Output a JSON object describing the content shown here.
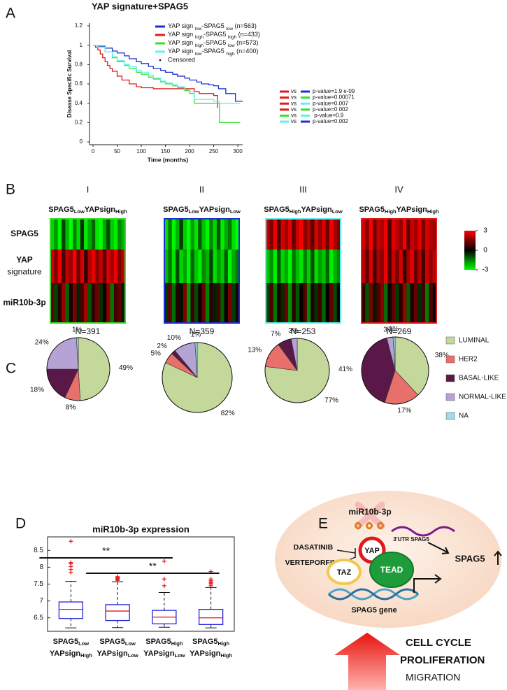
{
  "panel_labels": [
    "A",
    "B",
    "C",
    "D",
    "E"
  ],
  "chart_data": [
    {
      "type": "survival",
      "title": "YAP signature+SPAG5",
      "y_label": "Disease Specific Survival",
      "x_label": "Time (months)",
      "xlim": [
        0,
        310
      ],
      "xticks": [
        0,
        50,
        100,
        150,
        200,
        250,
        300
      ],
      "ylim": [
        0,
        1.2
      ],
      "yticks": [
        0,
        0.2,
        0.4,
        0.6,
        0.8,
        1,
        1.2
      ],
      "series": [
        {
          "name": [
            "YAP sign ",
            "low",
            "-SPAG5 ",
            "low",
            " (n=563)"
          ],
          "color": "#1a2fd1",
          "x": [
            0,
            10,
            25,
            40,
            50,
            65,
            75,
            90,
            100,
            115,
            125,
            140,
            150,
            165,
            175,
            190,
            200,
            215,
            225,
            240,
            250,
            260,
            275,
            295,
            310
          ],
          "values": [
            1,
            0.99,
            0.97,
            0.94,
            0.92,
            0.89,
            0.86,
            0.83,
            0.81,
            0.78,
            0.76,
            0.74,
            0.72,
            0.7,
            0.68,
            0.66,
            0.64,
            0.62,
            0.6,
            0.59,
            0.58,
            0.55,
            0.5,
            0.42,
            0.42
          ]
        },
        {
          "name": [
            "YAP sign ",
            "high",
            "-SPAG5 ",
            "high",
            " (n=433)"
          ],
          "color": "#e0191c",
          "x": [
            0,
            5,
            10,
            15,
            20,
            25,
            30,
            35,
            40,
            50,
            60,
            75,
            90,
            100,
            125,
            150,
            175,
            200,
            210,
            220,
            250,
            258
          ],
          "values": [
            1,
            0.98,
            0.95,
            0.91,
            0.87,
            0.83,
            0.79,
            0.76,
            0.73,
            0.68,
            0.64,
            0.6,
            0.57,
            0.56,
            0.55,
            0.55,
            0.55,
            0.55,
            0.52,
            0.5,
            0.48,
            0.35
          ]
        },
        {
          "name": [
            "YAP sign ",
            "high",
            "-SPAG5 ",
            "low",
            " (n=573)"
          ],
          "color": "#3ddc2e",
          "x": [
            0,
            10,
            25,
            40,
            50,
            65,
            75,
            90,
            100,
            115,
            125,
            140,
            150,
            165,
            175,
            190,
            200,
            210,
            250,
            262,
            305
          ],
          "values": [
            1,
            0.98,
            0.93,
            0.87,
            0.83,
            0.79,
            0.76,
            0.72,
            0.7,
            0.67,
            0.65,
            0.62,
            0.6,
            0.58,
            0.56,
            0.53,
            0.5,
            0.4,
            0.4,
            0.2,
            0.2
          ]
        },
        {
          "name": [
            "YAP sign ",
            "low",
            "-SPAG5 ",
            "high",
            " (n=400)"
          ],
          "color": "#5ff2ef",
          "x": [
            0,
            10,
            25,
            40,
            50,
            65,
            75,
            90,
            100,
            115,
            125,
            140,
            150,
            165,
            175,
            190,
            200,
            210,
            250,
            262,
            305
          ],
          "values": [
            1,
            0.98,
            0.93,
            0.88,
            0.84,
            0.8,
            0.78,
            0.74,
            0.72,
            0.69,
            0.66,
            0.63,
            0.61,
            0.59,
            0.57,
            0.54,
            0.52,
            0.44,
            0.42,
            0.4,
            0.4
          ]
        }
      ],
      "censored_label": "Censored",
      "comparisons": [
        {
          "colors": [
            "#e0191c",
            "#1a2fd1"
          ],
          "vs": "vs",
          "p": "p-value=1.9 e-09"
        },
        {
          "colors": [
            "#e0191c",
            "#3ddc2e"
          ],
          "vs": "vs",
          "p": "p-value=0.00071"
        },
        {
          "colors": [
            "#e0191c",
            "#5ff2ef"
          ],
          "vs": "vs",
          "p": "p-value=0.007"
        },
        {
          "colors": [
            "#e0191c",
            "#3ddc2e"
          ],
          "vs": "vs",
          "p": "p-value=0.002"
        },
        {
          "colors": [
            "#3ddc2e",
            "#5ff2ef"
          ],
          "vs": "vs",
          "p": " p-value=0.9"
        },
        {
          "colors": [
            "#5ff2ef",
            "#1a2fd1"
          ],
          "vs": "vs",
          "p": "p-value=0.002"
        }
      ]
    },
    {
      "type": "pie",
      "categories": [
        "LUMINAL",
        "HER2",
        "BASAL-LIKE",
        "NORMAL-LIKE",
        "NA"
      ],
      "colors": [
        "#c4d89c",
        "#e8706a",
        "#5a1848",
        "#b5a3d6",
        "#9fdbe9"
      ],
      "series": [
        {
          "values": [
            49,
            8,
            18,
            24,
            1
          ],
          "value_labels": [
            "49%",
            "8%",
            "18%",
            "24%",
            "1%"
          ]
        },
        {
          "values": [
            82,
            5,
            2,
            10,
            1
          ],
          "value_labels": [
            "82%",
            "5%",
            "2%",
            "10%",
            "1%"
          ]
        },
        {
          "values": [
            77,
            13,
            7,
            3,
            null
          ],
          "value_labels": [
            "77%",
            "13%",
            "7%",
            "3%",
            null
          ]
        },
        {
          "values": [
            38,
            17,
            41,
            3,
            1
          ],
          "value_labels": [
            "38%",
            "17%",
            "41%",
            "3%",
            "1%"
          ]
        }
      ]
    },
    {
      "type": "box",
      "title": "miR10b-3p expression",
      "categories": [
        [
          [
            "SPAG5",
            "Low"
          ],
          [
            "YAPsign",
            "High"
          ]
        ],
        [
          [
            "SPAG5",
            "Low"
          ],
          [
            "YAPsign",
            "Low"
          ]
        ],
        [
          [
            "SPAG5",
            "High"
          ],
          [
            "YAPsign",
            "Low"
          ]
        ],
        [
          [
            "SPAG5",
            "High"
          ],
          [
            "YAPsign",
            "High"
          ]
        ]
      ],
      "ylim": [
        6.1,
        8.9
      ],
      "yticks": [
        6.5,
        7,
        7.5,
        8,
        8.5
      ],
      "box_color": "#2323d8",
      "median_color": "#e0191c",
      "outlier_color": "#e0191c",
      "boxes": [
        {
          "whisker_low": 6.2,
          "q1": 6.48,
          "median": 6.75,
          "q3": 6.97,
          "whisker_high": 7.58,
          "outliers": [
            7.85,
            7.93,
            8.02,
            8.1,
            8.14,
            8.77
          ]
        },
        {
          "whisker_low": 6.21,
          "q1": 6.42,
          "median": 6.7,
          "q3": 6.89,
          "whisker_high": 7.57,
          "outliers": [
            7.61,
            7.64,
            7.67,
            7.7,
            7.72
          ]
        },
        {
          "whisker_low": 6.22,
          "q1": 6.32,
          "median": 6.52,
          "q3": 6.72,
          "whisker_high": 7.25,
          "outliers": [
            7.45,
            7.65,
            8.18
          ]
        },
        {
          "whisker_low": 6.2,
          "q1": 6.3,
          "median": 6.5,
          "q3": 6.75,
          "whisker_high": 7.4,
          "outliers": [
            7.45,
            7.5,
            7.53,
            7.56,
            7.6,
            7.65,
            7.87
          ]
        }
      ],
      "brackets": [
        {
          "label": "**",
          "groups": [
            0,
            2
          ]
        },
        {
          "label": "**",
          "groups": [
            1,
            3
          ]
        }
      ]
    }
  ],
  "heatmap": {
    "row_labels": [
      [
        "SPAG5"
      ],
      [
        "YAP",
        "signature"
      ],
      [
        "miR10b-3p"
      ]
    ],
    "colorbar": {
      "lim": [
        -3,
        3
      ],
      "ticks": [
        3,
        0,
        -3
      ]
    },
    "groups": [
      {
        "numeral": "I",
        "title": [
          "SPAG5",
          "Low",
          "YAPsign",
          "High"
        ],
        "n_label": "N=391",
        "border": "#3ddc2e",
        "rows": [
          [
            -2.5,
            -1.8,
            -2.9,
            -0.8,
            -2.2,
            -3,
            -1.5,
            -2.6,
            -0.5,
            -2.8,
            -2,
            -1.2,
            -2.7,
            -3,
            -1.9,
            -0.9,
            -2.4,
            -2.8,
            -1.6,
            -2.1
          ],
          [
            2.4,
            1.5,
            2.8,
            0.9,
            2.2,
            1.8,
            2.9,
            1.2,
            2.5,
            0.6,
            2.1,
            2.7,
            1.6,
            2.3,
            1,
            2.6,
            1.9,
            2.8,
            1.4,
            2.2
          ],
          [
            1.2,
            -0.8,
            0.5,
            1.8,
            -1.2,
            0.3,
            1.5,
            -0.4,
            0.9,
            2,
            -1,
            0.6,
            1.3,
            -0.6,
            0.2,
            1.7,
            -1.4,
            0.8,
            1.1,
            -0.3
          ]
        ]
      },
      {
        "numeral": "II",
        "title": [
          "SPAG5",
          "Low",
          "YAPsign",
          "Low"
        ],
        "n_label": "N=359",
        "border": "#1a2fd1",
        "rows": [
          [
            -2.6,
            -1.5,
            -2.9,
            -2.1,
            -0.7,
            -2.4,
            -3,
            -1.8,
            -2.7,
            -1.1,
            -2.3,
            -2.9,
            -1.6,
            -2.5,
            -0.9,
            -2.8,
            -2,
            -1.4,
            -2.6,
            -3
          ],
          [
            -2.2,
            -1.4,
            -2.7,
            -0.9,
            -2.5,
            -1.9,
            -2.9,
            -1.2,
            -2.3,
            -2.8,
            -1.6,
            -2.1,
            -0.8,
            -2.6,
            -1.8,
            -2.4,
            -1.1,
            -2.9,
            -2,
            -1.5
          ],
          [
            -0.6,
            1.1,
            -1.3,
            0.4,
            -0.2,
            1.5,
            -1.8,
            0.7,
            -0.9,
            0.2,
            1.2,
            -1.5,
            0.5,
            -0.4,
            0.9,
            -1.1,
            0.1,
            1.4,
            -0.7,
            0.3
          ]
        ]
      },
      {
        "numeral": "III",
        "title": [
          "SPAG5",
          "High",
          "YAPsign",
          "Low"
        ],
        "n_label": "N=253",
        "border": "#5ff2ef",
        "rows": [
          [
            2.3,
            1.4,
            2.8,
            0.8,
            2.5,
            1.9,
            2.7,
            1.1,
            2.4,
            2.9,
            1.6,
            2.2,
            0.9,
            2.6,
            1.8,
            2.5,
            1.3,
            2.8,
            2,
            1.5
          ],
          [
            -2.3,
            -1.7,
            -2.8,
            -1,
            -2.5,
            -2,
            -2.9,
            -1.4,
            -2.2,
            -2.7,
            -1.5,
            -2.4,
            -0.9,
            -2.6,
            -1.9,
            -2.3,
            -1.2,
            -2.8,
            -2.1,
            -1.6
          ],
          [
            -0.8,
            0.9,
            -1.4,
            0.3,
            -0.5,
            1.3,
            -1.7,
            0.5,
            -1,
            0.1,
            1,
            -1.6,
            0.4,
            -0.6,
            0.7,
            -1.2,
            0,
            1.2,
            -0.9,
            0.2
          ]
        ]
      },
      {
        "numeral": "IV",
        "title": [
          "SPAG5",
          "High",
          "YAPsign",
          "High"
        ],
        "n_label": "N=269",
        "border": "#e0191c",
        "rows": [
          [
            2.5,
            1.6,
            2.9,
            1.2,
            2.3,
            2,
            2.8,
            0.9,
            2.6,
            2.2,
            1.7,
            2.9,
            1.1,
            2.4,
            1.9,
            2.7,
            1.4,
            2.5,
            2.1,
            1.8
          ],
          [
            2.2,
            1.1,
            2.6,
            0.7,
            2,
            1.6,
            2.8,
            0.9,
            2.3,
            1.4,
            2.5,
            0.6,
            1.9,
            2.7,
            1.2,
            2.1,
            0.8,
            2.4,
            1.7,
            2.2
          ],
          [
            0.6,
            -1,
            1.4,
            -0.3,
            0.9,
            1.6,
            -1.3,
            0.2,
            1.1,
            -0.7,
            0.5,
            1.8,
            -1.1,
            0.4,
            1.2,
            -0.5,
            0.8,
            -1.5,
            1,
            0.1
          ]
        ]
      }
    ]
  },
  "diagram": {
    "mirna": "miR10b-3p",
    "utr": "3'UTR SPAG5",
    "drugs": [
      "DASATINIB",
      "VERTEPORFIN"
    ],
    "yap": "YAP",
    "taz": "TAZ",
    "tead": "TEAD",
    "gene": "SPAG5 gene",
    "target": "SPAG5",
    "outcomes": [
      "CELL CYCLE",
      "PROLIFERATION",
      "MIGRATION"
    ]
  }
}
